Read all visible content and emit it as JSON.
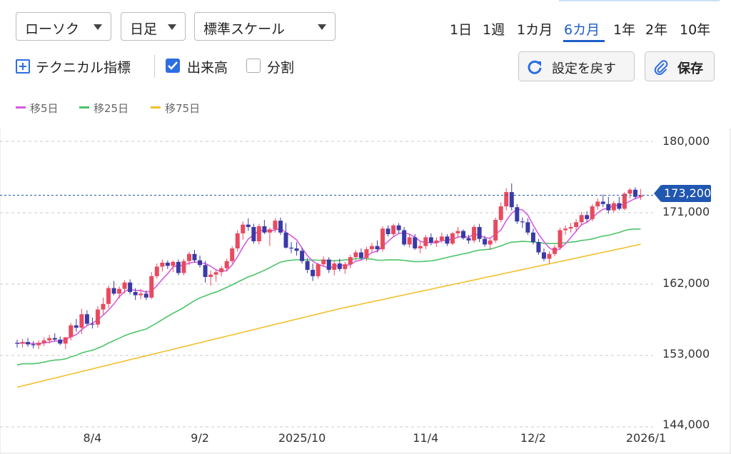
{
  "header": {
    "stock_select": "ローソク",
    "interval_select": "日足",
    "scale_select": "標準スケール",
    "periods": [
      "1日",
      "1週",
      "1カ月",
      "6カ月",
      "1年",
      "2年",
      "10年"
    ],
    "active_period": "6カ月"
  },
  "controls": {
    "technical_label": "テクニカル指標",
    "volume_label": "出来高",
    "split_label": "分割",
    "reset_label": "設定を戻す",
    "save_label": "保存"
  },
  "legend": [
    "移5日",
    "移25日",
    "移75日"
  ],
  "colors": {
    "up": "#e84a5f",
    "down": "#3a3aa6",
    "ma5": "#d35ce0",
    "ma25": "#4cc46a",
    "ma75": "#f2c02b",
    "accent": "#1f5ec8"
  },
  "chart_data": {
    "type": "candlestick",
    "y_ticks": [
      "180,000",
      "171,000",
      "162,000",
      "153,000",
      "144,000"
    ],
    "y_tick_values": [
      180000,
      171000,
      162000,
      153000,
      144000
    ],
    "ylim": [
      144000,
      180000
    ],
    "x_ticks": [
      "8/4",
      "9/2",
      "2025/10",
      "11/4",
      "12/2",
      "2026/1"
    ],
    "x_tick_index": [
      14,
      34,
      53,
      76,
      96,
      117
    ],
    "current_price_label": "173,200",
    "current_price": 173200,
    "candles_ohlc": [
      [
        154600,
        155000,
        154000,
        154500
      ],
      [
        154500,
        155100,
        154000,
        154700
      ],
      [
        154700,
        155200,
        154100,
        154400
      ],
      [
        154400,
        154800,
        153900,
        154300
      ],
      [
        154300,
        154900,
        153800,
        154600
      ],
      [
        154600,
        155300,
        154200,
        154900
      ],
      [
        154900,
        155600,
        154500,
        155200
      ],
      [
        155200,
        155800,
        154800,
        155000
      ],
      [
        155000,
        155400,
        154300,
        154500
      ],
      [
        154500,
        155200,
        153800,
        155300
      ],
      [
        155300,
        157100,
        154900,
        156800
      ],
      [
        156800,
        157600,
        156000,
        156500
      ],
      [
        156500,
        158900,
        155700,
        158200
      ],
      [
        158200,
        158700,
        156800,
        157000
      ],
      [
        157000,
        157800,
        156400,
        156900
      ],
      [
        156900,
        159200,
        156500,
        158800
      ],
      [
        158800,
        160300,
        158200,
        159500
      ],
      [
        159500,
        161800,
        159000,
        161500
      ],
      [
        161500,
        162400,
        160600,
        160800
      ],
      [
        160800,
        161700,
        160200,
        161400
      ],
      [
        161400,
        162500,
        160800,
        162200
      ],
      [
        162200,
        162600,
        160700,
        161000
      ],
      [
        161000,
        161500,
        160000,
        160600
      ],
      [
        160600,
        161400,
        160100,
        160800
      ],
      [
        160800,
        161200,
        160000,
        160300
      ],
      [
        160300,
        163500,
        160100,
        163000
      ],
      [
        163000,
        164600,
        162700,
        164200
      ],
      [
        164200,
        165100,
        163600,
        164700
      ],
      [
        164700,
        165000,
        163900,
        164300
      ],
      [
        164300,
        165000,
        163500,
        164800
      ],
      [
        164800,
        165100,
        163100,
        163400
      ],
      [
        163400,
        165200,
        163100,
        164900
      ],
      [
        164900,
        166100,
        164400,
        165800
      ],
      [
        165800,
        166300,
        164700,
        165000
      ],
      [
        165000,
        165600,
        164100,
        164400
      ],
      [
        164400,
        164900,
        162200,
        162900
      ],
      [
        162900,
        163700,
        161800,
        163200
      ],
      [
        163200,
        163800,
        162300,
        163500
      ],
      [
        163500,
        164300,
        163000,
        164000
      ],
      [
        164000,
        165200,
        163600,
        164900
      ],
      [
        164900,
        166800,
        164600,
        166500
      ],
      [
        166500,
        168800,
        166100,
        168400
      ],
      [
        168400,
        169900,
        167600,
        169500
      ],
      [
        169500,
        170300,
        168700,
        169200
      ],
      [
        169200,
        169600,
        167100,
        167400
      ],
      [
        167400,
        169600,
        167000,
        169300
      ],
      [
        169300,
        170100,
        168300,
        168500
      ],
      [
        168500,
        169100,
        166800,
        168900
      ],
      [
        168900,
        170300,
        168500,
        170000
      ],
      [
        170000,
        170400,
        168200,
        168500
      ],
      [
        168500,
        169700,
        166500,
        166600
      ],
      [
        166600,
        167300,
        165900,
        166500
      ],
      [
        166500,
        167300,
        165600,
        166200
      ],
      [
        166200,
        166600,
        164600,
        164900
      ],
      [
        164900,
        165300,
        163400,
        163800
      ],
      [
        163800,
        164600,
        162400,
        163000
      ],
      [
        163000,
        164700,
        162700,
        164500
      ],
      [
        164500,
        165500,
        164200,
        165100
      ],
      [
        165100,
        165400,
        163400,
        163800
      ],
      [
        163800,
        165000,
        163100,
        164600
      ],
      [
        164600,
        165200,
        163600,
        163900
      ],
      [
        163900,
        164800,
        163300,
        164500
      ],
      [
        164500,
        165700,
        164000,
        165400
      ],
      [
        165400,
        166300,
        165000,
        166000
      ],
      [
        166000,
        166500,
        165100,
        165300
      ],
      [
        165300,
        166700,
        164900,
        166400
      ],
      [
        166400,
        167200,
        165900,
        166800
      ],
      [
        166800,
        167500,
        166000,
        166400
      ],
      [
        166400,
        169300,
        166100,
        169000
      ],
      [
        169000,
        169400,
        168000,
        168300
      ],
      [
        168300,
        169600,
        167900,
        169400
      ],
      [
        169400,
        169700,
        168400,
        168800
      ],
      [
        168800,
        169200,
        166800,
        167000
      ],
      [
        167000,
        168300,
        166600,
        167900
      ],
      [
        167900,
        168300,
        166300,
        166500
      ],
      [
        166500,
        167400,
        165900,
        166800
      ],
      [
        166800,
        168200,
        166400,
        167900
      ],
      [
        167900,
        168400,
        166900,
        167200
      ],
      [
        167200,
        167900,
        166700,
        167500
      ],
      [
        167500,
        168500,
        167200,
        168000
      ],
      [
        168000,
        168300,
        166800,
        167100
      ],
      [
        167100,
        168600,
        166900,
        168400
      ],
      [
        168400,
        169200,
        167800,
        168700
      ],
      [
        168700,
        168900,
        167600,
        167800
      ],
      [
        167800,
        168200,
        167100,
        167500
      ],
      [
        167500,
        169500,
        167200,
        169200
      ],
      [
        169200,
        169600,
        167300,
        167700
      ],
      [
        167700,
        168100,
        166700,
        167000
      ],
      [
        167000,
        167800,
        166300,
        167500
      ],
      [
        167500,
        170400,
        167200,
        170100
      ],
      [
        170100,
        172300,
        169800,
        171800
      ],
      [
        171800,
        174100,
        171300,
        173600
      ],
      [
        173600,
        174700,
        171300,
        171700
      ],
      [
        171700,
        172100,
        169600,
        169900
      ],
      [
        169900,
        170400,
        169100,
        169800
      ],
      [
        169800,
        170300,
        168200,
        168500
      ],
      [
        168500,
        169000,
        167000,
        167300
      ],
      [
        167300,
        167700,
        165700,
        166000
      ],
      [
        166000,
        166500,
        164900,
        165200
      ],
      [
        165200,
        166100,
        164600,
        165800
      ],
      [
        165800,
        166900,
        165500,
        166600
      ],
      [
        166600,
        169100,
        166300,
        168800
      ],
      [
        168800,
        169400,
        168200,
        169000
      ],
      [
        169000,
        169700,
        168500,
        169200
      ],
      [
        169200,
        170200,
        168700,
        169800
      ],
      [
        169800,
        171100,
        169400,
        170700
      ],
      [
        170700,
        171200,
        169800,
        170200
      ],
      [
        170200,
        172100,
        169900,
        171800
      ],
      [
        171800,
        172800,
        171400,
        172400
      ],
      [
        172400,
        173300,
        171700,
        172100
      ],
      [
        172100,
        173000,
        170900,
        171300
      ],
      [
        171300,
        172500,
        171000,
        172200
      ],
      [
        172200,
        173000,
        171300,
        171500
      ],
      [
        171500,
        173600,
        171300,
        173400
      ],
      [
        173400,
        174100,
        172800,
        173900
      ],
      [
        173900,
        174200,
        172700,
        173000
      ],
      [
        173000,
        174000,
        172600,
        173200
      ]
    ]
  }
}
